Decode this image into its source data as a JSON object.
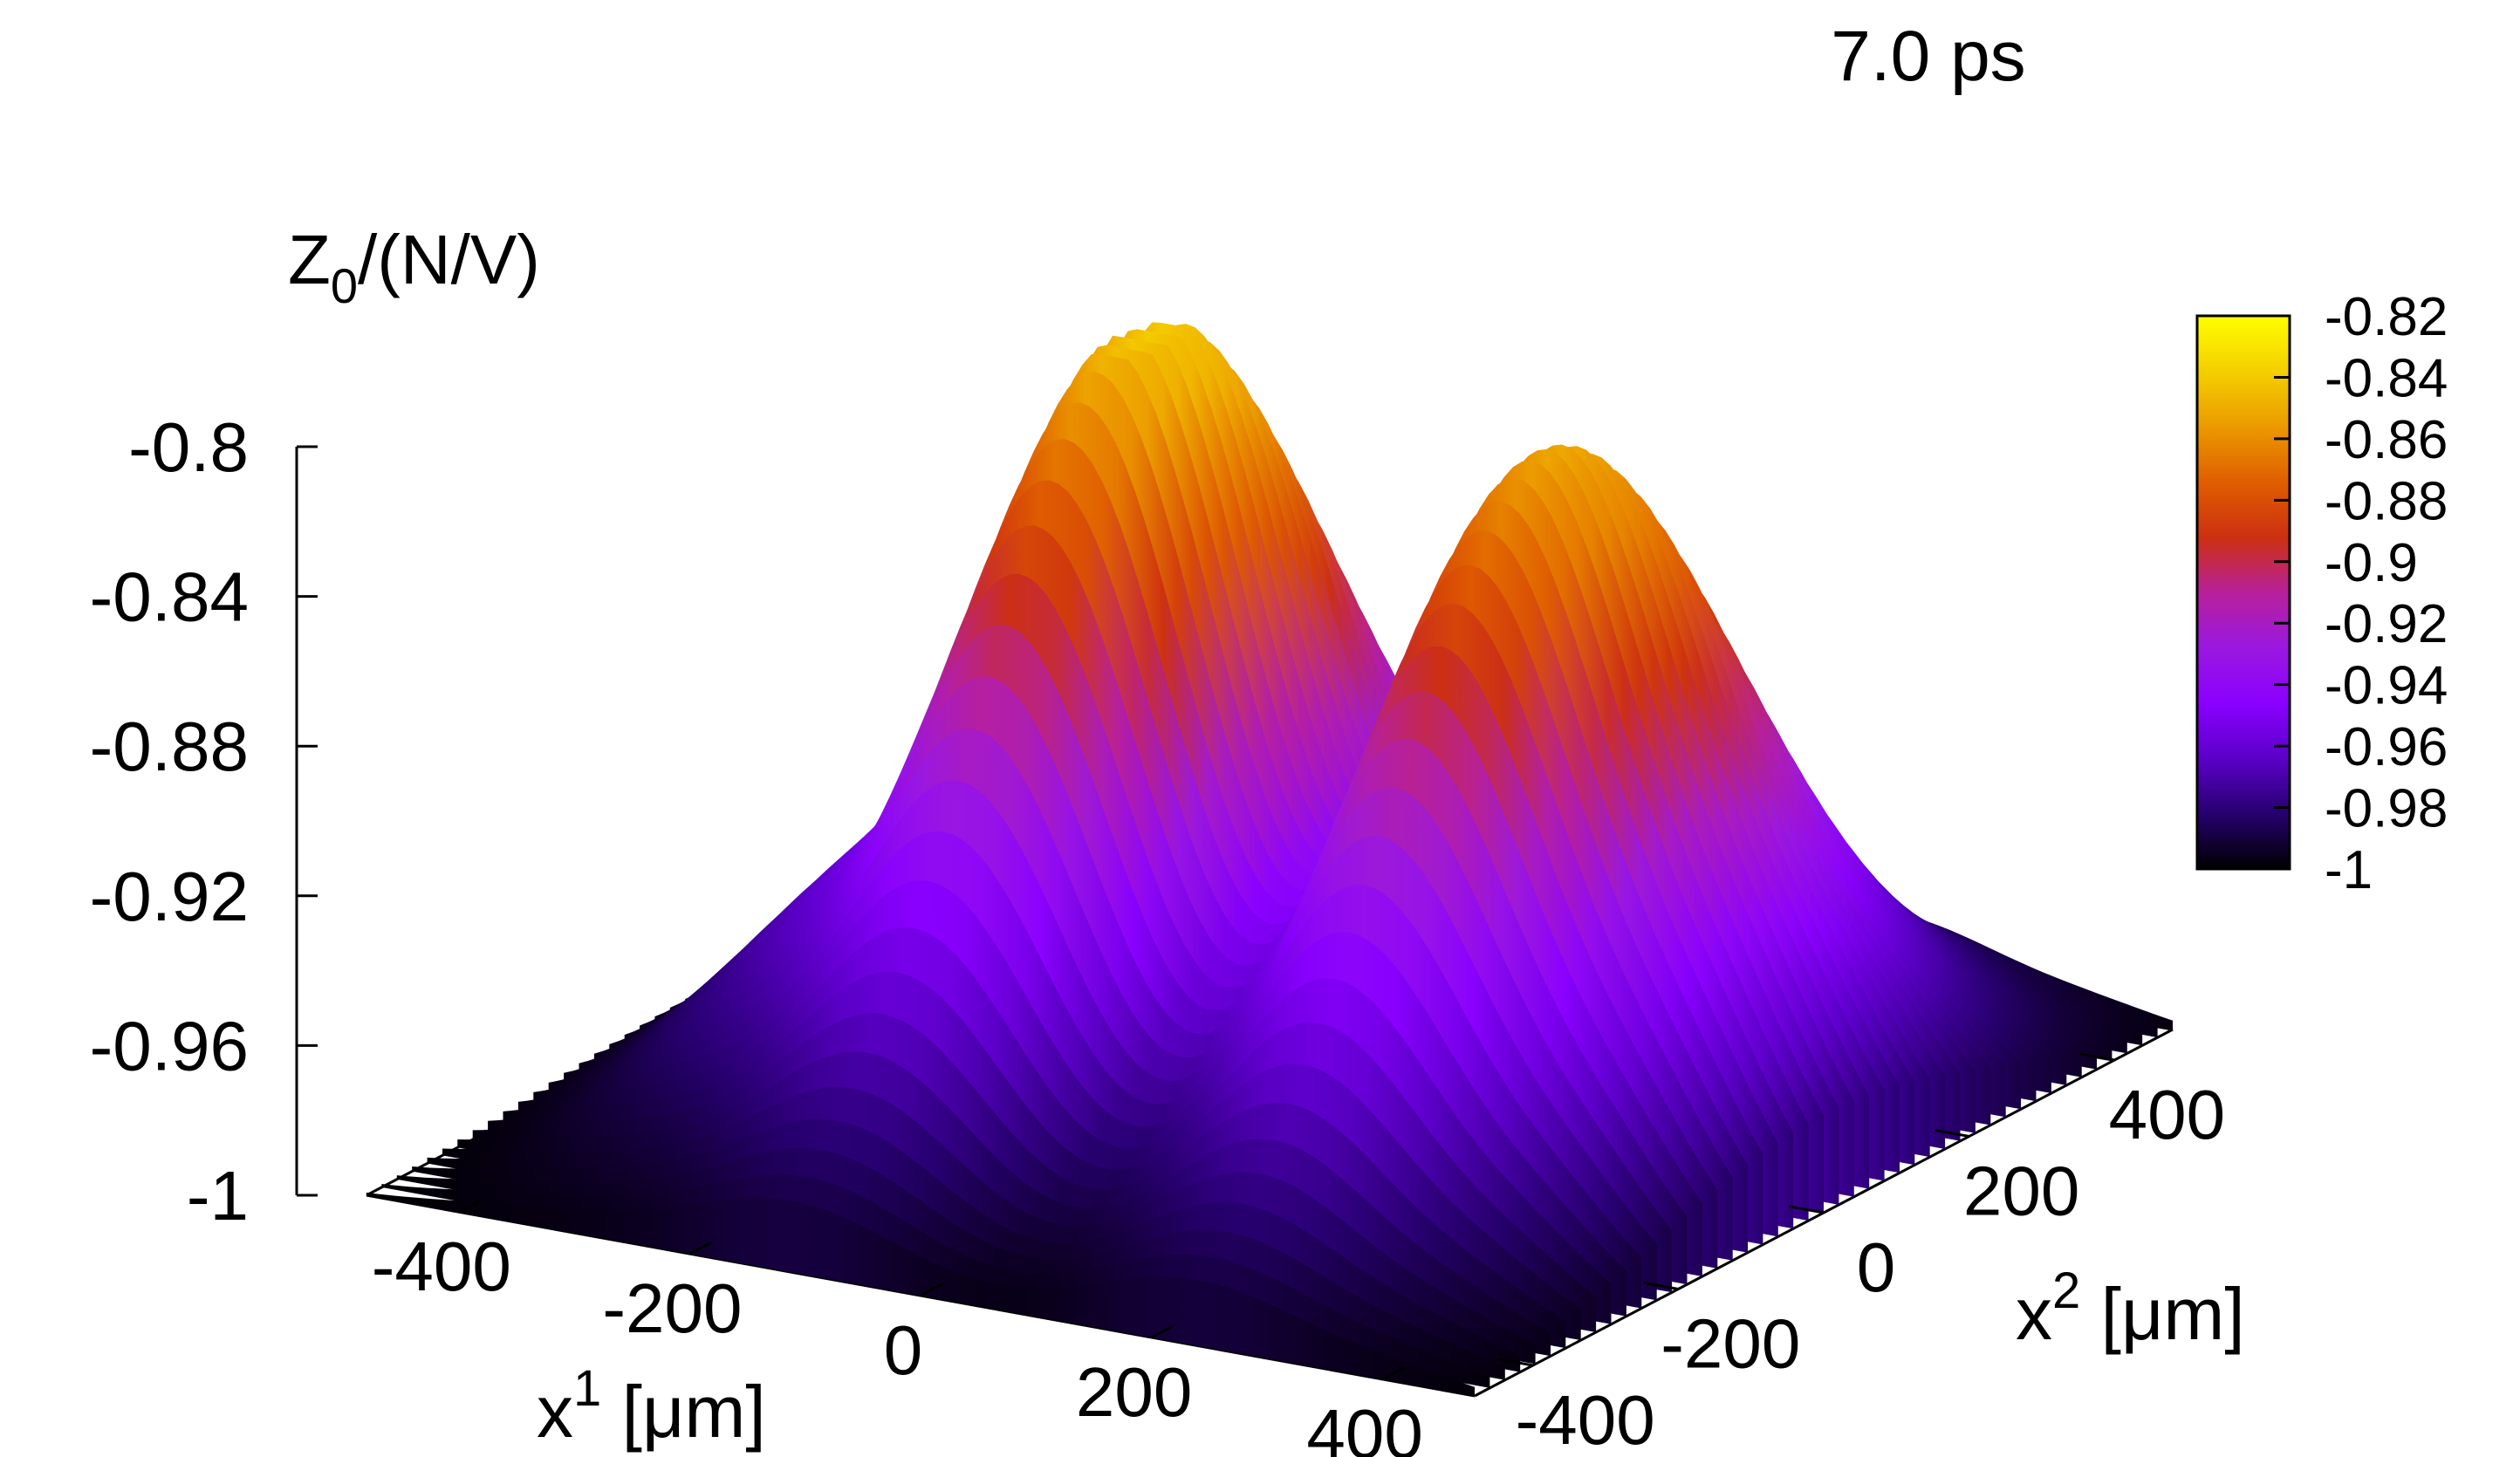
{
  "chart_data": {
    "type": "surface3d",
    "annotation": "7.0 ps",
    "zlabel": {
      "main": "Z",
      "sub": "0",
      "rest": "/(N/V)"
    },
    "xlabel": {
      "main": "x",
      "sup": "1",
      "rest": " [μm]"
    },
    "ylabel": {
      "main": "x",
      "sup": "2",
      "rest": " [μm]"
    },
    "xlim": [
      -480,
      480
    ],
    "ylim": [
      -480,
      480
    ],
    "zlim": [
      -1,
      -0.8
    ],
    "xticks": [
      -400,
      -200,
      0,
      200,
      400
    ],
    "yticks": [
      -400,
      -200,
      0,
      200,
      400
    ],
    "zticks": [
      -0.8,
      -0.84,
      -0.88,
      -0.92,
      -0.96,
      -1
    ],
    "xtick_labels": [
      "-400",
      "-200",
      "0",
      "200",
      "400"
    ],
    "ytick_labels": [
      "-400",
      "-200",
      "0",
      "200",
      "400"
    ],
    "ztick_labels": [
      "-0.8",
      "-0.84",
      "-0.88",
      "-0.92",
      "-0.96",
      "-1"
    ],
    "colorbar": {
      "range": [
        -1,
        -0.82
      ],
      "ticks": [
        -0.82,
        -0.84,
        -0.86,
        -0.88,
        -0.9,
        -0.92,
        -0.94,
        -0.96,
        -0.98,
        -1
      ],
      "tick_labels": [
        "-0.82",
        "-0.84",
        "-0.86",
        "-0.88",
        "-0.9",
        "-0.92",
        "-0.94",
        "-0.96",
        "-0.98",
        "-1"
      ],
      "palette": [
        "#000000",
        "#26006e",
        "#5b00c8",
        "#8a00ff",
        "#9a18e0",
        "#b8209a",
        "#cd3010",
        "#e05e00",
        "#eb9a00",
        "#f5cf00",
        "#ffff00"
      ]
    },
    "peaks": [
      {
        "x1": -110,
        "x2": 0,
        "height": 0.205,
        "sigma_x1": 95,
        "sigma_x2": 220
      },
      {
        "x1": 240,
        "x2": 0,
        "height": 0.19,
        "sigma_x1": 95,
        "sigma_x2": 220
      }
    ],
    "side_lobes": [
      {
        "x1": -330,
        "x2": 0,
        "height": 0.045,
        "sigma_x1": 80,
        "sigma_x2": 220
      },
      {
        "x1": 420,
        "x2": 0,
        "height": 0.03,
        "sigma_x1": 60,
        "sigma_x2": 220
      }
    ],
    "baseline": -1.0
  }
}
